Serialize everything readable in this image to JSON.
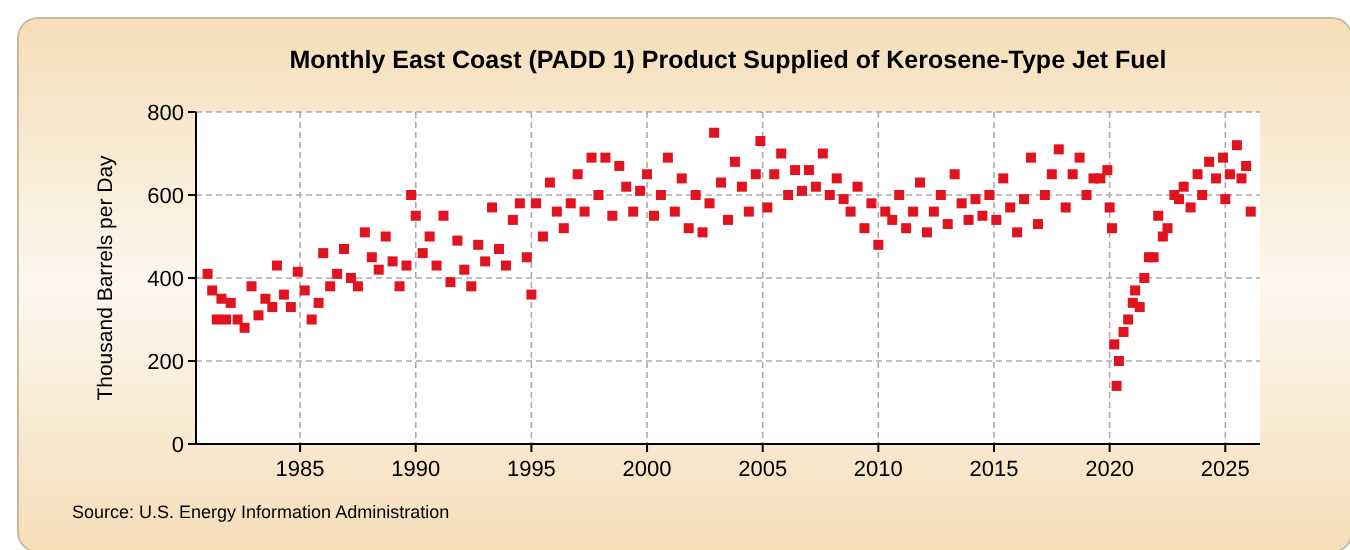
{
  "chart_data": {
    "type": "scatter",
    "title": "Monthly East Coast (PADD 1) Product Supplied of Kerosene-Type Jet Fuel",
    "ylabel": "Thousand Barrels per Day",
    "annotations": [
      "Source: U.S. Energy Information Administration"
    ],
    "x": [
      1981.0,
      1981.2,
      1981.4,
      1981.6,
      1981.8,
      1982.0,
      1982.3,
      1982.6,
      1982.9,
      1983.2,
      1983.5,
      1983.8,
      1984.0,
      1984.3,
      1984.6,
      1984.9,
      1985.2,
      1985.5,
      1985.8,
      1986.0,
      1986.3,
      1986.6,
      1986.9,
      1987.2,
      1987.5,
      1987.8,
      1988.1,
      1988.4,
      1988.7,
      1989.0,
      1989.3,
      1989.6,
      1989.8,
      1990.0,
      1990.3,
      1990.6,
      1990.9,
      1991.2,
      1991.5,
      1991.8,
      1992.1,
      1992.4,
      1992.7,
      1993.0,
      1993.3,
      1993.6,
      1993.9,
      1994.2,
      1994.5,
      1994.8,
      1995.0,
      1995.2,
      1995.5,
      1995.8,
      1996.1,
      1996.4,
      1996.7,
      1997.0,
      1997.3,
      1997.6,
      1997.9,
      1998.2,
      1998.5,
      1998.8,
      1999.1,
      1999.4,
      1999.7,
      2000.0,
      2000.3,
      2000.6,
      2000.9,
      2001.2,
      2001.5,
      2001.8,
      2002.1,
      2002.4,
      2002.7,
      2002.9,
      2003.2,
      2003.5,
      2003.8,
      2004.1,
      2004.4,
      2004.7,
      2004.9,
      2005.2,
      2005.5,
      2005.8,
      2006.1,
      2006.4,
      2006.7,
      2007.0,
      2007.3,
      2007.6,
      2007.9,
      2008.2,
      2008.5,
      2008.8,
      2009.1,
      2009.4,
      2009.7,
      2010.0,
      2010.3,
      2010.6,
      2010.9,
      2011.2,
      2011.5,
      2011.8,
      2012.1,
      2012.4,
      2012.7,
      2013.0,
      2013.3,
      2013.6,
      2013.9,
      2014.2,
      2014.5,
      2014.8,
      2015.1,
      2015.4,
      2015.7,
      2016.0,
      2016.3,
      2016.6,
      2016.9,
      2017.2,
      2017.5,
      2017.8,
      2018.1,
      2018.4,
      2018.7,
      2019.0,
      2019.3,
      2019.6,
      2019.9,
      2020.0,
      2020.1,
      2020.2,
      2020.3,
      2020.4,
      2020.6,
      2020.8,
      2021.0,
      2021.1,
      2021.3,
      2021.5,
      2021.7,
      2021.9,
      2022.1,
      2022.3,
      2022.5,
      2022.8,
      2023.0,
      2023.2,
      2023.5,
      2023.8,
      2024.0,
      2024.3,
      2024.6,
      2024.9,
      2025.0,
      2025.2,
      2025.5,
      2025.7,
      2025.9,
      2026.1
    ],
    "series": [
      {
        "color": "#e0131e",
        "values": [
          410,
          370,
          300,
          350,
          300,
          340,
          300,
          280,
          380,
          310,
          350,
          330,
          430,
          360,
          330,
          415,
          370,
          300,
          340,
          460,
          380,
          410,
          470,
          400,
          380,
          510,
          450,
          420,
          500,
          440,
          380,
          430,
          600,
          550,
          460,
          500,
          430,
          550,
          390,
          490,
          420,
          380,
          480,
          440,
          570,
          470,
          430,
          540,
          580,
          450,
          360,
          580,
          500,
          630,
          560,
          520,
          580,
          650,
          560,
          690,
          600,
          690,
          550,
          670,
          620,
          560,
          610,
          650,
          550,
          600,
          690,
          560,
          640,
          520,
          600,
          510,
          580,
          750,
          630,
          540,
          680,
          620,
          560,
          650,
          730,
          570,
          650,
          700,
          600,
          660,
          610,
          660,
          620,
          700,
          600,
          640,
          590,
          560,
          620,
          520,
          580,
          480,
          560,
          540,
          600,
          520,
          560,
          630,
          510,
          560,
          600,
          530,
          650,
          580,
          540,
          590,
          550,
          600,
          540,
          640,
          570,
          510,
          590,
          690,
          530,
          600,
          650,
          710,
          570,
          650,
          690,
          600,
          640,
          640,
          660,
          570,
          520,
          240,
          140,
          200,
          270,
          300,
          340,
          370,
          330,
          400,
          450,
          450,
          550,
          500,
          520,
          600,
          590,
          620,
          570,
          650,
          600,
          680,
          640,
          690,
          590,
          650,
          720,
          640,
          670,
          560
        ]
      }
    ],
    "xlim": [
      1980.5,
      2026.5
    ],
    "xticks": [
      1985,
      1990,
      1995,
      2000,
      2005,
      2010,
      2015,
      2020,
      2025
    ],
    "ylim": [
      0,
      800
    ],
    "yticks": [
      0,
      200,
      400,
      600,
      800
    ],
    "grid": true,
    "marker": "square"
  }
}
